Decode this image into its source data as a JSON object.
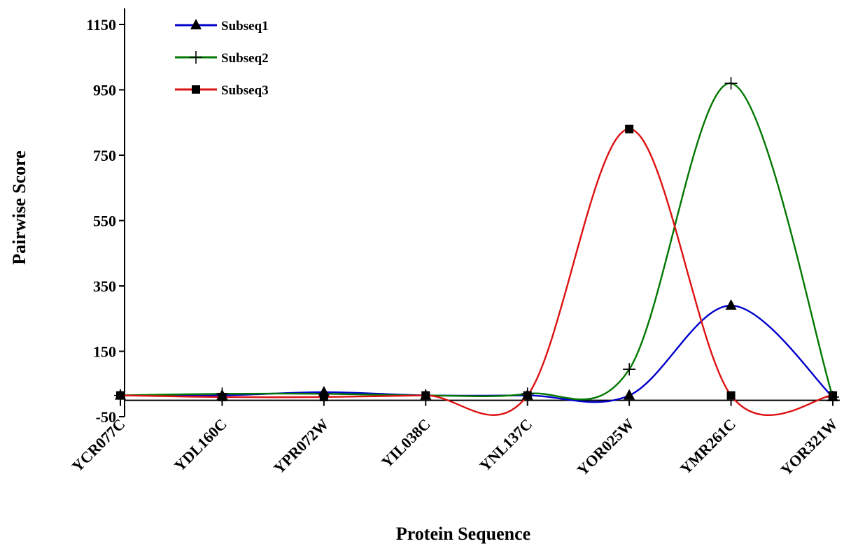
{
  "chart_data": {
    "type": "line",
    "smooth": true,
    "xlabel": "Protein Sequence",
    "ylabel": "Pairwise Score",
    "categories": [
      "YCR077C",
      "YDL160C",
      "YPR072W",
      "YIL038C",
      "YNL137C",
      "YOR025W",
      "YMR261C",
      "YOR321W"
    ],
    "ylim": [
      -50,
      1150
    ],
    "yticks": [
      -50,
      150,
      350,
      550,
      750,
      950,
      1150
    ],
    "grid": false,
    "legend_position": "top-left",
    "series": [
      {
        "name": "Subseq1",
        "marker": "triangle",
        "color": "#0000cc",
        "values": [
          15,
          15,
          25,
          15,
          15,
          15,
          290,
          10
        ]
      },
      {
        "name": "Subseq2",
        "marker": "plus",
        "color": "#007700",
        "values": [
          15,
          20,
          20,
          15,
          20,
          95,
          970,
          10
        ]
      },
      {
        "name": "Subseq3",
        "marker": "square",
        "color": "#dd1111",
        "values": [
          15,
          10,
          10,
          15,
          15,
          830,
          15,
          15
        ]
      }
    ]
  }
}
